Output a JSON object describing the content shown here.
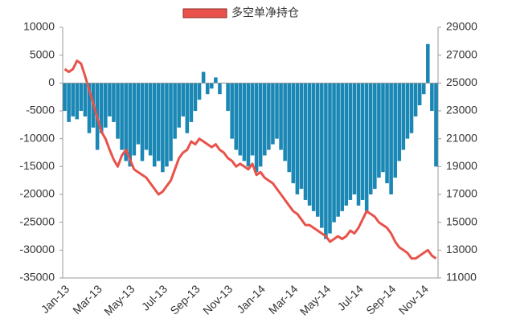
{
  "chart_data": {
    "type": "bar-line",
    "categories": [
      "Jan-13",
      null,
      null,
      null,
      null,
      null,
      null,
      null,
      "Mar-13",
      null,
      null,
      null,
      null,
      null,
      null,
      null,
      "May-13",
      null,
      null,
      null,
      null,
      null,
      null,
      null,
      "Jul-13",
      null,
      null,
      null,
      null,
      null,
      null,
      null,
      "Sep-13",
      null,
      null,
      null,
      null,
      null,
      null,
      null,
      "Nov-13",
      null,
      null,
      null,
      null,
      null,
      null,
      null,
      "Jan-14",
      null,
      null,
      null,
      null,
      null,
      null,
      null,
      "Mar-14",
      null,
      null,
      null,
      null,
      null,
      null,
      null,
      "May-14",
      null,
      null,
      null,
      null,
      null,
      null,
      null,
      "Jul-14",
      null,
      null,
      null,
      null,
      null,
      null,
      null,
      "Sep-14",
      null,
      null,
      null,
      null,
      null,
      null,
      null,
      "Nov-14",
      null,
      null,
      null
    ],
    "series": [
      {
        "color": "#1a87b5",
        "type": "bar",
        "values": [
          -5000,
          -7000,
          -6000,
          -6500,
          -5000,
          -6000,
          -9000,
          -8000,
          -12000,
          -9000,
          -8000,
          -6000,
          -7000,
          -10000,
          -12000,
          -14000,
          -15000,
          -13000,
          -11000,
          -14000,
          -12000,
          -13000,
          -15000,
          -14000,
          -16000,
          -15000,
          -14000,
          -10000,
          -8000,
          -6000,
          -9000,
          -7000,
          -5000,
          -3000,
          2000,
          -2000,
          -1000,
          1000,
          -2000,
          0,
          -5000,
          -10000,
          -12000,
          -13000,
          -14000,
          -15000,
          -13000,
          -16000,
          -15000,
          -13000,
          -12000,
          -11000,
          -10000,
          -12000,
          -14000,
          -16000,
          -18000,
          -20000,
          -19000,
          -21000,
          -22000,
          -23000,
          -24000,
          -26000,
          -28000,
          -27000,
          -25000,
          -24000,
          -23000,
          -22000,
          -21000,
          -20000,
          -22000,
          -21000,
          -23000,
          -20000,
          -19000,
          -17000,
          -16000,
          -18000,
          -20000,
          -17000,
          -14000,
          -12000,
          -10000,
          -9000,
          -6000,
          -4000,
          -2000,
          7000,
          -5000,
          -15000
        ]
      },
      {
        "name": "多空单净持仓",
        "color": "#e8524a",
        "type": "line",
        "axis": "y2",
        "values": [
          26000,
          25800,
          26000,
          26600,
          26400,
          25500,
          24500,
          23500,
          22500,
          21500,
          21000,
          20200,
          19500,
          19000,
          19800,
          20200,
          19500,
          18800,
          18600,
          18400,
          18200,
          17800,
          17400,
          17000,
          17200,
          17600,
          18000,
          18800,
          19600,
          20000,
          20200,
          20800,
          20600,
          21000,
          20800,
          20600,
          20400,
          20600,
          20200,
          20000,
          19600,
          19400,
          19000,
          19200,
          19000,
          18800,
          19200,
          18400,
          18600,
          18200,
          18000,
          17800,
          17400,
          17000,
          16600,
          16200,
          15800,
          15600,
          15200,
          14800,
          14800,
          14600,
          14400,
          14200,
          14000,
          13600,
          13800,
          14000,
          13800,
          14000,
          14400,
          14200,
          14600,
          15200,
          15800,
          15600,
          15400,
          15000,
          14800,
          14600,
          14200,
          13600,
          13200,
          13000,
          12800,
          12400,
          12400,
          12600,
          12800,
          13000,
          12600,
          12400
        ]
      }
    ],
    "ylim": [
      -35000,
      10000
    ],
    "yticks": [
      -35000,
      -30000,
      -25000,
      -20000,
      -15000,
      -10000,
      -5000,
      0,
      5000,
      10000
    ],
    "y2lim": [
      11000,
      29000
    ],
    "y2ticks": [
      11000,
      13000,
      15000,
      17000,
      19000,
      21000,
      23000,
      25000,
      27000,
      29000
    ]
  }
}
